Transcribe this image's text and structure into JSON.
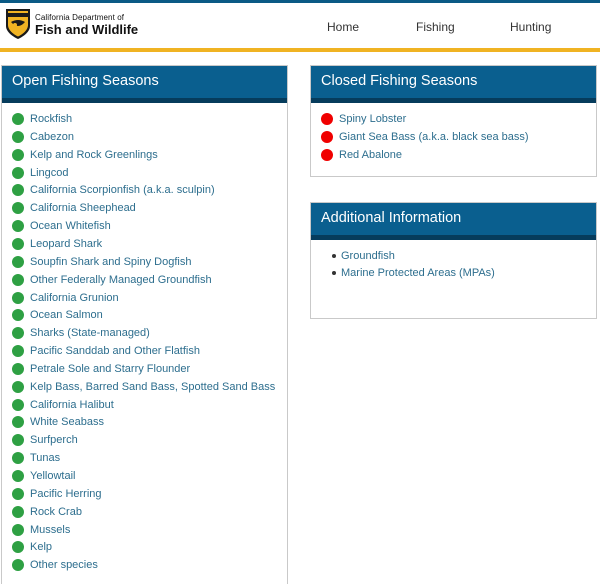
{
  "brand": {
    "line1": "California Department of",
    "line2": "Fish and Wildlife",
    "seal_text": "CALIFORNIA"
  },
  "nav": {
    "items": [
      {
        "label": "Home"
      },
      {
        "label": "Fishing"
      },
      {
        "label": "Hunting"
      }
    ]
  },
  "open_seasons": {
    "title": "Open Fishing Seasons",
    "status_color": "#2ea043",
    "items": [
      {
        "label": "Rockfish"
      },
      {
        "label": "Cabezon"
      },
      {
        "label": "Kelp and Rock Greenlings"
      },
      {
        "label": "Lingcod"
      },
      {
        "label": "California Scorpionfish (a.k.a. sculpin)"
      },
      {
        "label": "California Sheephead"
      },
      {
        "label": "Ocean Whitefish"
      },
      {
        "label": "Leopard Shark"
      },
      {
        "label": "Soupfin Shark and Spiny Dogfish"
      },
      {
        "label": "Other Federally Managed Groundfish"
      },
      {
        "label": "California Grunion"
      },
      {
        "label": "Ocean Salmon"
      },
      {
        "label": "Sharks (State-managed)"
      },
      {
        "label": "Pacific Sanddab and Other Flatfish"
      },
      {
        "label": "Petrale Sole and Starry Flounder"
      },
      {
        "label": "Kelp Bass, Barred Sand Bass, Spotted Sand Bass"
      },
      {
        "label": "California Halibut"
      },
      {
        "label": "White Seabass"
      },
      {
        "label": "Surfperch"
      },
      {
        "label": "Tunas"
      },
      {
        "label": "Yellowtail"
      },
      {
        "label": "Pacific Herring"
      },
      {
        "label": "Rock Crab"
      },
      {
        "label": "Mussels"
      },
      {
        "label": "Kelp"
      },
      {
        "label": "Other species"
      }
    ]
  },
  "closed_seasons": {
    "title": "Closed Fishing Seasons",
    "status_color": "#f00000",
    "items": [
      {
        "label": "Spiny Lobster"
      },
      {
        "label": "Giant Sea Bass (a.k.a. black sea bass)"
      },
      {
        "label": "Red Abalone"
      }
    ]
  },
  "additional_info": {
    "title": "Additional Information",
    "items": [
      {
        "label": "Groundfish"
      },
      {
        "label": "Marine Protected Areas (MPAs)"
      }
    ]
  },
  "colors": {
    "header_blue": "#0a5f8f",
    "accent_gold": "#f0b323",
    "link": "#2d6e8e"
  }
}
